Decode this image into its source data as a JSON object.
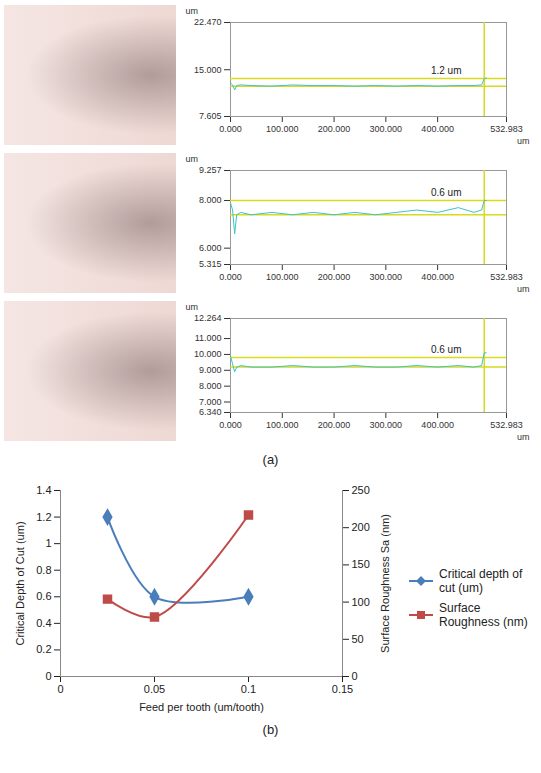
{
  "chart_data": [
    {
      "type": "line",
      "panel": "(a)",
      "x_label": "um",
      "y_label": "um",
      "color": "#3cc4c8",
      "xlim": [
        0,
        532.983
      ],
      "xticks": [
        {
          "value": 0,
          "label": "0.000"
        },
        {
          "value": 100,
          "label": "100.000"
        },
        {
          "value": 200,
          "label": "200.000"
        },
        {
          "value": 300,
          "label": "300.000"
        },
        {
          "value": 400,
          "label": "400.000"
        },
        {
          "value": 532.983,
          "label": "532.983"
        }
      ],
      "ylim": [
        7.605,
        22.47
      ],
      "yticks": [
        {
          "value": 7.605,
          "label": "7.605"
        },
        {
          "value": 15,
          "label": "15.000"
        },
        {
          "value": 22.47,
          "label": "22.470"
        }
      ],
      "x": [
        0,
        4,
        8,
        12,
        20,
        40,
        80,
        120,
        160,
        200,
        240,
        280,
        320,
        360,
        400,
        440,
        470,
        485,
        490,
        494
      ],
      "values": [
        12.9,
        12.6,
        11.8,
        12.5,
        12.6,
        12.5,
        12.4,
        12.6,
        12.5,
        12.5,
        12.4,
        12.5,
        12.4,
        12.5,
        12.4,
        12.5,
        12.5,
        12.6,
        13.6,
        13.7
      ],
      "levels": [
        13.6,
        12.4
      ],
      "cursor_x": 490,
      "annotation": "1.2 um"
    },
    {
      "type": "line",
      "panel": "(a)",
      "x_label": "um",
      "y_label": "um",
      "color": "#3cc4c8",
      "xlim": [
        0,
        532.983
      ],
      "xticks": [
        {
          "value": 0,
          "label": "0.000"
        },
        {
          "value": 100,
          "label": "100.000"
        },
        {
          "value": 200,
          "label": "200.000"
        },
        {
          "value": 300,
          "label": "300.000"
        },
        {
          "value": 400,
          "label": "400.000"
        },
        {
          "value": 532.983,
          "label": "532.983"
        }
      ],
      "ylim": [
        5.315,
        9.257
      ],
      "yticks": [
        {
          "value": 5.315,
          "label": "5.315"
        },
        {
          "value": 6,
          "label": "6.000"
        },
        {
          "value": 8,
          "label": "8.000"
        },
        {
          "value": 9.257,
          "label": "9.257"
        }
      ],
      "x": [
        0,
        4,
        8,
        12,
        20,
        40,
        80,
        120,
        160,
        200,
        240,
        280,
        320,
        360,
        400,
        440,
        470,
        485,
        490,
        494
      ],
      "values": [
        7.9,
        7.6,
        6.6,
        7.4,
        7.5,
        7.4,
        7.5,
        7.4,
        7.5,
        7.4,
        7.5,
        7.4,
        7.5,
        7.6,
        7.5,
        7.7,
        7.5,
        7.6,
        8.0,
        8.0
      ],
      "levels": [
        8.0,
        7.4
      ],
      "cursor_x": 490,
      "annotation": "0.6 um"
    },
    {
      "type": "line",
      "panel": "(a)",
      "x_label": "um",
      "y_label": "um",
      "color": "#3cc4c8",
      "xlim": [
        0,
        532.983
      ],
      "xticks": [
        {
          "value": 0,
          "label": "0.000"
        },
        {
          "value": 100,
          "label": "100.000"
        },
        {
          "value": 200,
          "label": "200.000"
        },
        {
          "value": 300,
          "label": "300.000"
        },
        {
          "value": 400,
          "label": "400.000"
        },
        {
          "value": 532.983,
          "label": "532.983"
        }
      ],
      "ylim": [
        6.34,
        12.264
      ],
      "yticks": [
        {
          "value": 6.34,
          "label": "6.340"
        },
        {
          "value": 7,
          "label": "7.000"
        },
        {
          "value": 8,
          "label": "8.000"
        },
        {
          "value": 9,
          "label": "9.000"
        },
        {
          "value": 10,
          "label": "10.000"
        },
        {
          "value": 11,
          "label": "11.000"
        },
        {
          "value": 12.264,
          "label": "12.264"
        }
      ],
      "x": [
        0,
        4,
        8,
        12,
        20,
        40,
        80,
        120,
        160,
        200,
        240,
        280,
        320,
        360,
        400,
        440,
        470,
        485,
        490,
        494
      ],
      "values": [
        9.9,
        9.4,
        8.9,
        9.2,
        9.3,
        9.2,
        9.2,
        9.3,
        9.2,
        9.2,
        9.3,
        9.2,
        9.2,
        9.3,
        9.2,
        9.3,
        9.2,
        9.3,
        10.1,
        10.1
      ],
      "levels": [
        9.8,
        9.2
      ],
      "cursor_x": 490,
      "annotation": "0.6 um"
    },
    {
      "type": "line",
      "panel": "(b)",
      "x_label": "Feed per tooth (um/tooth)",
      "y_label": "Critical Depth of Cut (um)",
      "y2_label": "Surface Roughness Sa (nm)",
      "x": [
        0.025,
        0.05,
        0.1
      ],
      "xlim": [
        0,
        0.15
      ],
      "xticks": [
        0,
        0.05,
        0.1,
        0.15
      ],
      "ylim": [
        0,
        1.4
      ],
      "yticks": [
        0,
        0.2,
        0.4,
        0.6,
        0.8,
        1,
        1.2,
        1.4
      ],
      "y2lim": [
        0,
        250
      ],
      "y2ticks": [
        0,
        50,
        100,
        150,
        200,
        250
      ],
      "legend": "right",
      "series": [
        {
          "name": "Critical depth of cut (um)",
          "color": "#4a7ebb",
          "values": [
            1.2,
            0.6,
            0.6
          ],
          "marker": "diamond",
          "line_style": "smooth"
        },
        {
          "name": "Surface Roughness (nm)",
          "color": "#be4b48",
          "values": [
            104,
            80,
            217
          ],
          "marker": "square",
          "line_style": "smooth",
          "axis": "y2"
        }
      ]
    }
  ]
}
